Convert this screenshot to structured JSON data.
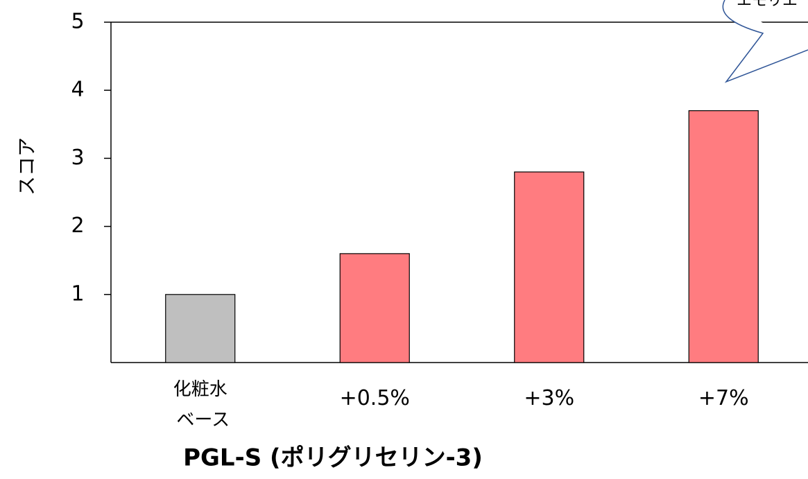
{
  "chart_data": {
    "type": "bar",
    "categories": [
      "化粧水\nベース",
      "+0.5%",
      "+3%",
      "+7%"
    ],
    "values": [
      1.0,
      1.6,
      2.8,
      3.7
    ],
    "colors": [
      "#bfbfbf",
      "#ff7c80",
      "#ff7c80",
      "#ff7c80"
    ],
    "ylim": [
      0,
      5
    ],
    "yticks": [
      1,
      2,
      3,
      4,
      5
    ],
    "y_label": "スコア",
    "x_label": "PGL-S (ポリグリセリン-3)",
    "annotation": "エモリエ"
  }
}
